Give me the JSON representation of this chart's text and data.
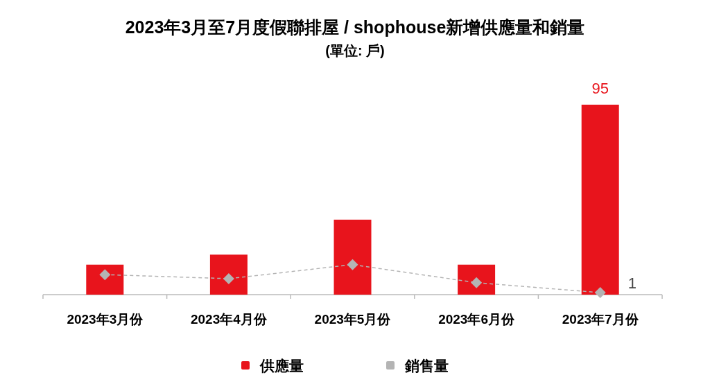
{
  "chart_data": {
    "type": "bar",
    "title": "2023年3月至7月度假聯排屋 / shophouse新增供應量和銷量",
    "subtitle": "(單位: 戶)",
    "categories": [
      "2023年3月份",
      "2023年4月份",
      "2023年5月份",
      "2023年6月份",
      "2023年7月份"
    ],
    "legend": "bottom",
    "series": [
      {
        "name": "供應量",
        "color": "#e8141c",
        "values": [
          15,
          20,
          37.5,
          15,
          95
        ],
        "value_labels": [
          null,
          null,
          null,
          null,
          "95"
        ]
      },
      {
        "name": "銷售量",
        "type": "line",
        "color": "#b4b4b4",
        "marker": "diamond",
        "line_style": "dashed",
        "values": [
          10,
          8,
          15,
          6,
          1
        ],
        "value_labels": [
          null,
          null,
          null,
          null,
          "1"
        ]
      }
    ]
  }
}
